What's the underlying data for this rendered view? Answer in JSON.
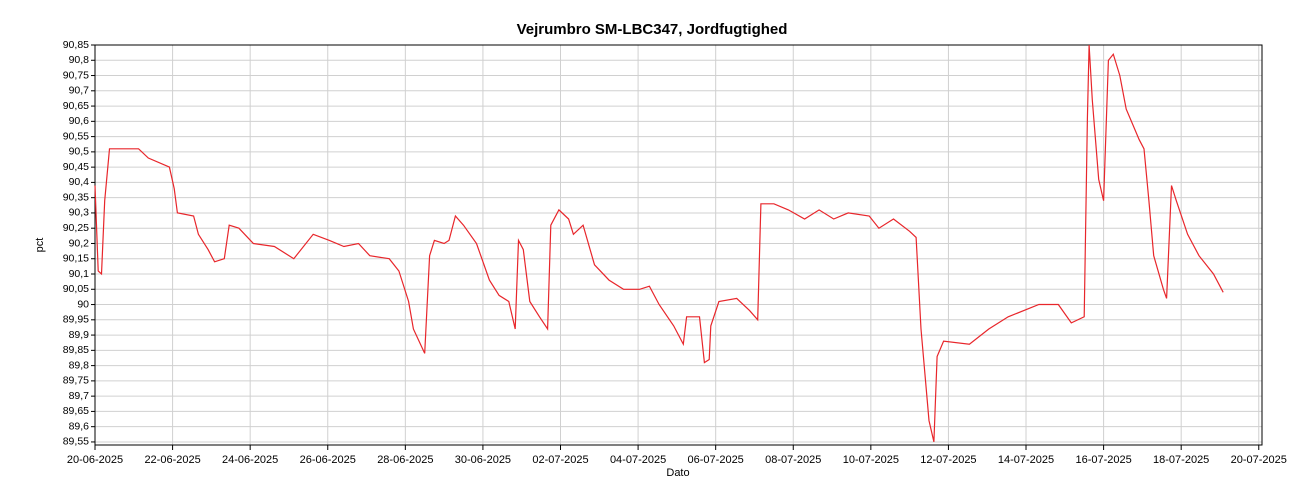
{
  "chart_data": {
    "type": "line",
    "title": "Vejrumbro SM-LBC347, Jordfugtighed",
    "xlabel": "Dato",
    "ylabel": "pct",
    "x": [
      "2025-06-20 00:00",
      "2025-06-20 02:00",
      "2025-06-20 04:00",
      "2025-06-20 06:00",
      "2025-06-20 09:00",
      "2025-06-20 18:00",
      "2025-06-21 03:00",
      "2025-06-21 09:00",
      "2025-06-21 22:00",
      "2025-06-22 01:00",
      "2025-06-22 03:00",
      "2025-06-22 13:00",
      "2025-06-22 16:00",
      "2025-06-22 22:00",
      "2025-06-23 02:00",
      "2025-06-23 08:00",
      "2025-06-23 11:00",
      "2025-06-23 17:00",
      "2025-06-24 02:00",
      "2025-06-24 15:00",
      "2025-06-25 03:00",
      "2025-06-25 15:00",
      "2025-06-26 01:00",
      "2025-06-26 10:00",
      "2025-06-26 19:00",
      "2025-06-27 02:00",
      "2025-06-27 14:00",
      "2025-06-27 20:00",
      "2025-06-28 02:00",
      "2025-06-28 05:00",
      "2025-06-28 12:00",
      "2025-06-28 15:00",
      "2025-06-28 18:00",
      "2025-06-29 00:00",
      "2025-06-29 03:00",
      "2025-06-29 07:00",
      "2025-06-29 12:00",
      "2025-06-29 20:00",
      "2025-06-30 04:00",
      "2025-06-30 10:00",
      "2025-06-30 16:00",
      "2025-06-30 20:00",
      "2025-06-30 22:00",
      "2025-07-01 01:00",
      "2025-07-01 05:00",
      "2025-07-01 11:00",
      "2025-07-01 16:00",
      "2025-07-01 18:00",
      "2025-07-01 23:00",
      "2025-07-02 05:00",
      "2025-07-02 08:00",
      "2025-07-02 14:00",
      "2025-07-02 21:00",
      "2025-07-03 06:00",
      "2025-07-03 15:00",
      "2025-07-04 01:00",
      "2025-07-04 07:00",
      "2025-07-04 13:00",
      "2025-07-04 22:00",
      "2025-07-05 04:00",
      "2025-07-05 06:00",
      "2025-07-05 14:00",
      "2025-07-05 17:00",
      "2025-07-05 20:00",
      "2025-07-05 21:00",
      "2025-07-06 02:00",
      "2025-07-06 13:00",
      "2025-07-06 21:00",
      "2025-07-07 02:00",
      "2025-07-07 04:00",
      "2025-07-07 12:00",
      "2025-07-07 21:00",
      "2025-07-08 07:00",
      "2025-07-08 16:00",
      "2025-07-09 01:00",
      "2025-07-09 10:00",
      "2025-07-09 23:00",
      "2025-07-10 05:00",
      "2025-07-10 14:00",
      "2025-07-11 00:00",
      "2025-07-11 04:00",
      "2025-07-11 07:00",
      "2025-07-11 12:00",
      "2025-07-11 15:00",
      "2025-07-11 17:00",
      "2025-07-11 21:00",
      "2025-07-12 13:00",
      "2025-07-13 01:00",
      "2025-07-13 13:00",
      "2025-07-14 08:00",
      "2025-07-14 20:00",
      "2025-07-15 04:00",
      "2025-07-15 12:00",
      "2025-07-15 14:00",
      "2025-07-15 15:00",
      "2025-07-15 17:00",
      "2025-07-15 21:00",
      "2025-07-16 00:00",
      "2025-07-16 03:00",
      "2025-07-16 06:00",
      "2025-07-16 10:00",
      "2025-07-16 14:00",
      "2025-07-16 22:00",
      "2025-07-17 01:00",
      "2025-07-17 04:00",
      "2025-07-17 07:00",
      "2025-07-17 13:00",
      "2025-07-17 15:00",
      "2025-07-17 18:00",
      "2025-07-17 21:00",
      "2025-07-18 04:00",
      "2025-07-18 11:00",
      "2025-07-18 20:00",
      "2025-07-19 02:00"
    ],
    "series": [
      {
        "name": "Jordfugtighed",
        "color": "#e8262b",
        "values": [
          90.39,
          90.11,
          90.1,
          90.34,
          90.51,
          90.51,
          90.51,
          90.48,
          90.45,
          90.38,
          90.3,
          90.29,
          90.23,
          90.18,
          90.14,
          90.15,
          90.26,
          90.25,
          90.2,
          90.19,
          90.15,
          90.23,
          90.21,
          90.19,
          90.2,
          90.16,
          90.15,
          90.11,
          90.01,
          89.92,
          89.84,
          90.16,
          90.21,
          90.2,
          90.21,
          90.29,
          90.26,
          90.2,
          90.08,
          90.03,
          90.01,
          89.92,
          90.21,
          90.18,
          90.01,
          89.96,
          89.92,
          90.26,
          90.31,
          90.28,
          90.23,
          90.26,
          90.13,
          90.08,
          90.05,
          90.05,
          90.06,
          90.0,
          89.93,
          89.87,
          89.96,
          89.96,
          89.81,
          89.82,
          89.93,
          90.01,
          90.02,
          89.98,
          89.95,
          90.33,
          90.33,
          90.31,
          90.28,
          90.31,
          90.28,
          90.3,
          90.29,
          90.25,
          90.28,
          90.24,
          90.22,
          89.92,
          89.62,
          89.55,
          89.83,
          89.88,
          89.87,
          89.92,
          89.96,
          90.0,
          90.0,
          89.94,
          89.96,
          90.61,
          90.85,
          90.67,
          90.41,
          90.34,
          90.8,
          90.82,
          90.75,
          90.64,
          90.54,
          90.51,
          90.34,
          90.16,
          90.05,
          90.02,
          90.39,
          90.34,
          90.23,
          90.16,
          90.1,
          90.04
        ]
      }
    ],
    "xlim": [
      "2025-06-20 00:00",
      "2025-07-20 02:00"
    ],
    "xticks": [
      {
        "value": "2025-06-20 00:00",
        "label": "20-06-2025"
      },
      {
        "value": "2025-06-22 00:00",
        "label": "22-06-2025"
      },
      {
        "value": "2025-06-24 00:00",
        "label": "24-06-2025"
      },
      {
        "value": "2025-06-26 00:00",
        "label": "26-06-2025"
      },
      {
        "value": "2025-06-28 00:00",
        "label": "28-06-2025"
      },
      {
        "value": "2025-06-30 00:00",
        "label": "30-06-2025"
      },
      {
        "value": "2025-07-02 00:00",
        "label": "02-07-2025"
      },
      {
        "value": "2025-07-04 00:00",
        "label": "04-07-2025"
      },
      {
        "value": "2025-07-06 00:00",
        "label": "06-07-2025"
      },
      {
        "value": "2025-07-08 00:00",
        "label": "08-07-2025"
      },
      {
        "value": "2025-07-10 00:00",
        "label": "10-07-2025"
      },
      {
        "value": "2025-07-12 00:00",
        "label": "12-07-2025"
      },
      {
        "value": "2025-07-14 00:00",
        "label": "14-07-2025"
      },
      {
        "value": "2025-07-16 00:00",
        "label": "16-07-2025"
      },
      {
        "value": "2025-07-18 00:00",
        "label": "18-07-2025"
      },
      {
        "value": "2025-07-20 00:00",
        "label": "20-07-2025"
      }
    ],
    "ylim": [
      89.54,
      90.85
    ],
    "yticks": [
      {
        "value": 89.55,
        "label": "89,55"
      },
      {
        "value": 89.6,
        "label": "89,6"
      },
      {
        "value": 89.65,
        "label": "89,65"
      },
      {
        "value": 89.7,
        "label": "89,7"
      },
      {
        "value": 89.75,
        "label": "89,75"
      },
      {
        "value": 89.8,
        "label": "89,8"
      },
      {
        "value": 89.85,
        "label": "89,85"
      },
      {
        "value": 89.9,
        "label": "89,9"
      },
      {
        "value": 89.95,
        "label": "89,95"
      },
      90,
      {
        "value": 90.05,
        "label": "90,05"
      },
      {
        "value": 90.1,
        "label": "90,1"
      },
      {
        "value": 90.15,
        "label": "90,15"
      },
      {
        "value": 90.2,
        "label": "90,2"
      },
      {
        "value": 90.25,
        "label": "90,25"
      },
      {
        "value": 90.3,
        "label": "90,3"
      },
      {
        "value": 90.35,
        "label": "90,35"
      },
      {
        "value": 90.4,
        "label": "90,4"
      },
      {
        "value": 90.45,
        "label": "90,45"
      },
      {
        "value": 90.5,
        "label": "90,5"
      },
      {
        "value": 90.55,
        "label": "90,55"
      },
      {
        "value": 90.6,
        "label": "90,6"
      },
      {
        "value": 90.65,
        "label": "90,65"
      },
      {
        "value": 90.7,
        "label": "90,7"
      },
      {
        "value": 90.75,
        "label": "90,75"
      },
      {
        "value": 90.8,
        "label": "90,8"
      },
      {
        "value": 90.85,
        "label": "90,85"
      }
    ],
    "grid": true
  }
}
